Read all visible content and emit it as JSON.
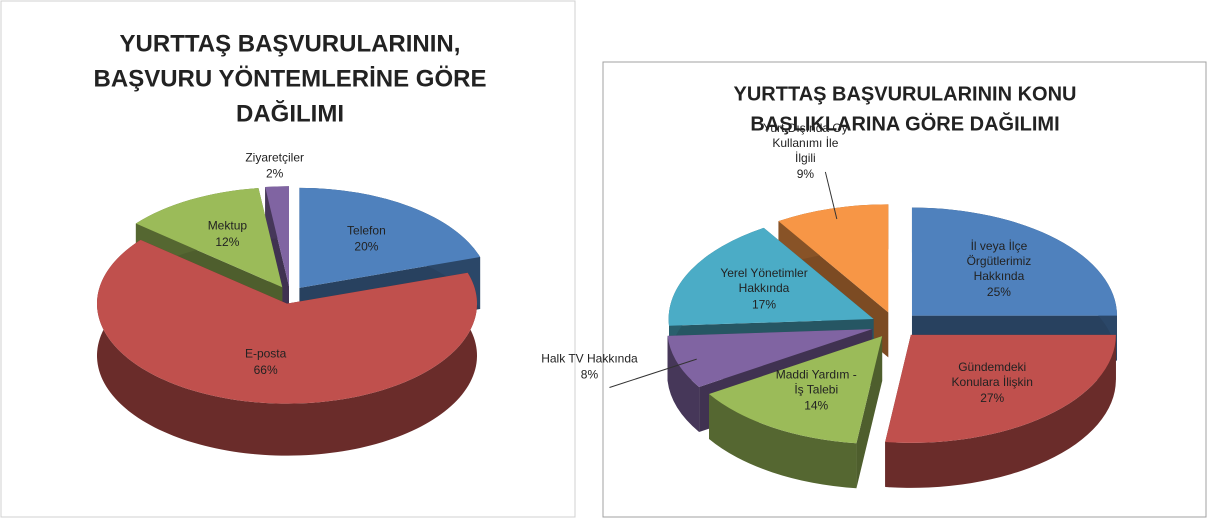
{
  "chart_data": [
    {
      "type": "pie3d",
      "title": [
        "YURTTAŞ BAŞVURULARININ,",
        "BAŞVURU YÖNTEMLERİNE GÖRE",
        "DAĞILIMI"
      ],
      "categories": [
        "Telefon",
        "E-posta",
        "Mektup",
        "Ziyaretçiler"
      ],
      "values": [
        20,
        66,
        12,
        2
      ],
      "value_labels": [
        "20%",
        "66%",
        "12%",
        "2%"
      ],
      "colors": [
        "#4f81bd",
        "#c0504d",
        "#9bbb59",
        "#8064a2"
      ]
    },
    {
      "type": "pie3d",
      "title": [
        "YURTTAŞ BAŞVURULARININ KONU",
        "BAŞLIKLARINA GÖRE DAĞILIMI"
      ],
      "categories": [
        "İl veya İlçe Örgütlerimiz Hakkında",
        "Gündemdeki Konulara İlişkin",
        "Maddi Yardım - İş Talebi",
        "Halk TV Hakkında",
        "Yerel Yönetimler Hakkında",
        "Yurt Dışında Oy Kullanımı İle İlgili"
      ],
      "values": [
        25,
        27,
        14,
        8,
        17,
        9
      ],
      "value_labels": [
        "25%",
        "27%",
        "14%",
        "8%",
        "17%",
        "9%"
      ],
      "colors": [
        "#4f81bd",
        "#c0504d",
        "#9bbb59",
        "#8064a2",
        "#4bacc6",
        "#f79646"
      ]
    }
  ]
}
